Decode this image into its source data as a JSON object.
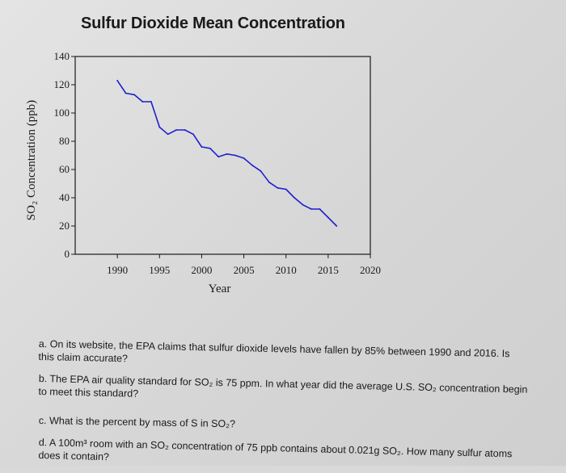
{
  "chart_data": {
    "type": "line",
    "title": "Sulfur Dioxide Mean Concentration",
    "xlabel": "Year",
    "ylabel": "SO₂ Concentration (ppb)",
    "xlim": [
      1985,
      2020
    ],
    "ylim": [
      0,
      140
    ],
    "x_ticks": [
      1990,
      1995,
      2000,
      2005,
      2010,
      2015,
      2020
    ],
    "y_ticks": [
      0,
      20,
      40,
      60,
      80,
      100,
      120,
      140
    ],
    "series": [
      {
        "color": "#1f1fd0",
        "x": [
          1990,
          1991,
          1992,
          1993,
          1994,
          1995,
          1996,
          1997,
          1998,
          1999,
          2000,
          2001,
          2002,
          2003,
          2004,
          2005,
          2006,
          2007,
          2008,
          2009,
          2010,
          2011,
          2012,
          2013,
          2014,
          2015,
          2016
        ],
        "y": [
          123,
          114,
          113,
          108,
          108,
          90,
          85,
          88,
          88,
          85,
          76,
          75,
          69,
          71,
          70,
          68,
          63,
          59,
          51,
          47,
          46,
          40,
          35,
          32,
          32,
          26,
          20
        ]
      }
    ],
    "grid": false,
    "legend": "none"
  },
  "questions": {
    "a": "a. On its website, the EPA claims that sulfur dioxide levels have fallen by 85% between 1990 and 2016. Is",
    "a_cont": "this claim accurate?",
    "b": "b. The EPA air quality standard for SO₂ is 75 ppm. In what year did the average U.S. SO₂ concentration begin",
    "b_cont": "to meet this standard?",
    "c": "c. What is the percent by mass of S in SO₂?",
    "d": "d. A 100m³ room with an SO₂ concentration of 75 ppb contains about 0.021g SO₂. How many sulfur atoms",
    "d_cont": "does it contain?"
  }
}
